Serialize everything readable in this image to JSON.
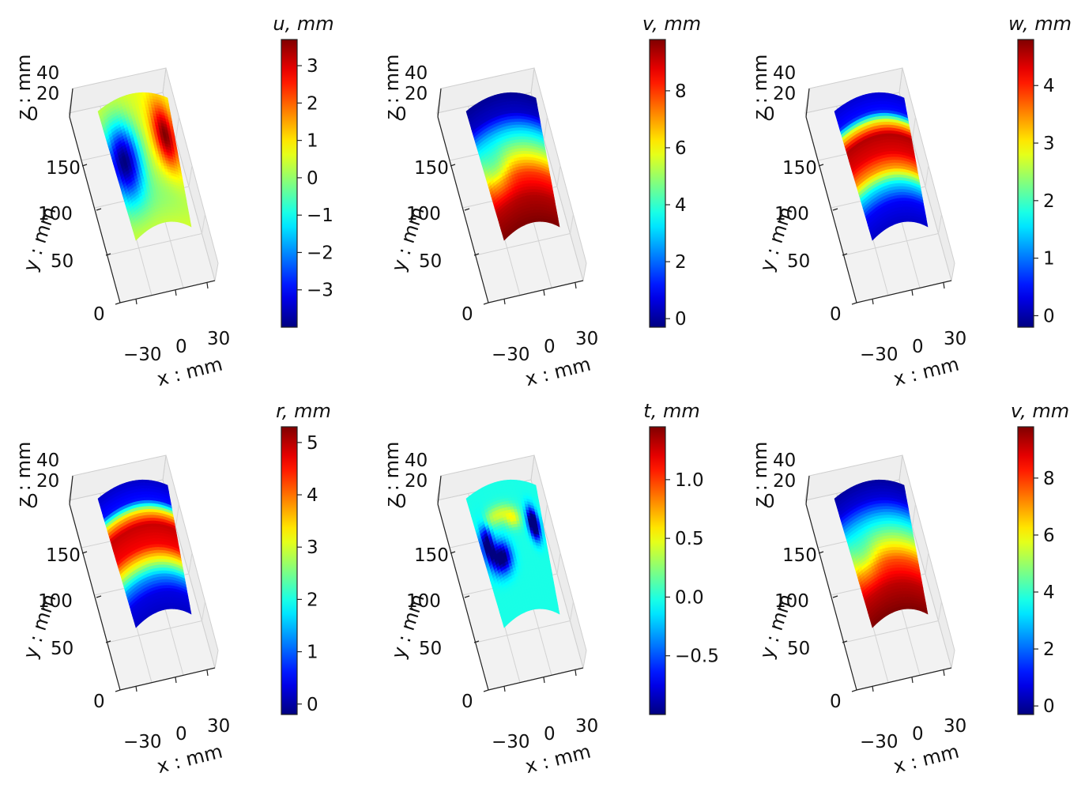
{
  "chart_data": [
    {
      "type": "heatmap",
      "title": "u, mm",
      "colormap": "jet",
      "colorbar": {
        "ticks": [
          "3",
          "2",
          "1",
          "0",
          "−1",
          "−2",
          "−3"
        ],
        "tick_values": [
          3,
          2,
          1,
          0,
          -1,
          -2,
          -3
        ],
        "min": -4.0,
        "max": 3.7
      },
      "axes": {
        "xlabel": "x : mm",
        "ylabel": "y : mm",
        "zlabel": "z : mm",
        "xticks": [
          "−30",
          "0",
          "30"
        ],
        "yticks": [
          "150",
          "100",
          "50",
          "0"
        ],
        "zticks": [
          "40",
          "20",
          "0"
        ]
      },
      "field": {
        "base": 0.6,
        "blobs": [
          {
            "cx": 0.15,
            "cy": 0.45,
            "sx": 0.18,
            "sy": 0.2,
            "v": 0.0
          },
          {
            "cx": 0.85,
            "cy": 0.32,
            "sx": 0.13,
            "sy": 0.17,
            "v": 1.0
          },
          {
            "cx": 0.5,
            "cy": 0.8,
            "sx": 0.5,
            "sy": 0.15,
            "v": 0.52
          }
        ]
      }
    },
    {
      "type": "heatmap",
      "title": "v, mm",
      "colormap": "jet",
      "colorbar": {
        "ticks": [
          "8",
          "6",
          "4",
          "2",
          "0"
        ],
        "tick_values": [
          8,
          6,
          4,
          2,
          0
        ],
        "min": -0.3,
        "max": 9.8
      },
      "axes": {
        "xlabel": "x : mm",
        "ylabel": "y : mm",
        "zlabel": "z : mm",
        "xticks": [
          "−30",
          "0",
          "30"
        ],
        "yticks": [
          "150",
          "100",
          "50",
          "0"
        ],
        "zticks": [
          "40",
          "20",
          "0"
        ]
      },
      "field": {
        "grad": [
          [
            0.0,
            0.02
          ],
          [
            0.15,
            0.07
          ],
          [
            0.28,
            0.32
          ],
          [
            0.45,
            0.56
          ],
          [
            0.62,
            0.82
          ],
          [
            0.8,
            0.95
          ],
          [
            1.0,
            1.0
          ]
        ],
        "blobs": [
          {
            "cx": 0.15,
            "cy": 0.55,
            "sx": 0.15,
            "sy": 0.12,
            "v": -0.14
          }
        ]
      }
    },
    {
      "type": "heatmap",
      "title": "w, mm",
      "colormap": "jet",
      "colorbar": {
        "ticks": [
          "4",
          "3",
          "2",
          "1",
          "0"
        ],
        "tick_values": [
          4,
          3,
          2,
          1,
          0
        ],
        "min": -0.2,
        "max": 4.8
      },
      "axes": {
        "xlabel": "x : mm",
        "ylabel": "y : mm",
        "zlabel": "z : mm",
        "xticks": [
          "−30",
          "0",
          "30"
        ],
        "yticks": [
          "150",
          "100",
          "50",
          "0"
        ],
        "zticks": [
          "40",
          "20",
          "0"
        ]
      },
      "field": {
        "grad": [
          [
            0.0,
            0.08
          ],
          [
            0.14,
            0.14
          ],
          [
            0.22,
            0.62
          ],
          [
            0.32,
            0.95
          ],
          [
            0.46,
            0.9
          ],
          [
            0.58,
            0.72
          ],
          [
            0.7,
            0.36
          ],
          [
            0.84,
            0.12
          ],
          [
            1.0,
            0.07
          ]
        ]
      }
    },
    {
      "type": "heatmap",
      "title": "r, mm",
      "colormap": "jet",
      "colorbar": {
        "ticks": [
          "5",
          "4",
          "3",
          "2",
          "1",
          "0"
        ],
        "tick_values": [
          5,
          4,
          3,
          2,
          1,
          0
        ],
        "min": -0.2,
        "max": 5.3
      },
      "axes": {
        "xlabel": "x : mm",
        "ylabel": "y : mm",
        "zlabel": "z : mm",
        "xticks": [
          "−30",
          "0",
          "30"
        ],
        "yticks": [
          "150",
          "100",
          "50",
          "0"
        ],
        "zticks": [
          "40",
          "20",
          "0"
        ]
      },
      "field": {
        "grad": [
          [
            0.0,
            0.07
          ],
          [
            0.15,
            0.14
          ],
          [
            0.24,
            0.65
          ],
          [
            0.34,
            0.93
          ],
          [
            0.5,
            0.88
          ],
          [
            0.62,
            0.6
          ],
          [
            0.74,
            0.28
          ],
          [
            0.86,
            0.1
          ],
          [
            1.0,
            0.07
          ]
        ]
      }
    },
    {
      "type": "heatmap",
      "title": "t, mm",
      "colormap": "jet",
      "colorbar": {
        "ticks": [
          "1.0",
          "0.5",
          "0.0",
          "−0.5"
        ],
        "tick_values": [
          1.0,
          0.5,
          0.0,
          -0.5
        ],
        "min": -1.0,
        "max": 1.45
      },
      "axes": {
        "xlabel": "x : mm",
        "ylabel": "y : mm",
        "zlabel": "z : mm",
        "xticks": [
          "−30",
          "0",
          "30"
        ],
        "yticks": [
          "150",
          "100",
          "50",
          "0"
        ],
        "zticks": [
          "40",
          "20",
          "0"
        ]
      },
      "field": {
        "base": 0.4,
        "blobs": [
          {
            "cx": 0.35,
            "cy": 0.24,
            "sx": 0.16,
            "sy": 0.05,
            "v": 0.58
          },
          {
            "cx": 0.55,
            "cy": 0.3,
            "sx": 0.08,
            "sy": 0.05,
            "v": 0.58
          },
          {
            "cx": 0.85,
            "cy": 0.33,
            "sx": 0.06,
            "sy": 0.08,
            "v": -0.25
          },
          {
            "cx": 0.25,
            "cy": 0.55,
            "sx": 0.1,
            "sy": 0.08,
            "v": -0.06
          },
          {
            "cx": 0.1,
            "cy": 0.4,
            "sx": 0.06,
            "sy": 0.1,
            "v": -0.05
          }
        ]
      }
    },
    {
      "type": "heatmap",
      "title": "v, mm",
      "colormap": "jet",
      "colorbar": {
        "ticks": [
          "8",
          "6",
          "4",
          "2",
          "0"
        ],
        "tick_values": [
          8,
          6,
          4,
          2,
          0
        ],
        "min": -0.3,
        "max": 9.8
      },
      "axes": {
        "xlabel": "x : mm",
        "ylabel": "y : mm",
        "zlabel": "z : mm",
        "xticks": [
          "−30",
          "0",
          "30"
        ],
        "yticks": [
          "150",
          "100",
          "50",
          "0"
        ],
        "zticks": [
          "40",
          "20",
          "0"
        ]
      },
      "field": {
        "grad": [
          [
            0.0,
            0.03
          ],
          [
            0.14,
            0.09
          ],
          [
            0.28,
            0.32
          ],
          [
            0.45,
            0.55
          ],
          [
            0.62,
            0.8
          ],
          [
            0.8,
            0.94
          ],
          [
            1.0,
            1.0
          ]
        ],
        "blobs": [
          {
            "cx": 0.15,
            "cy": 0.55,
            "sx": 0.15,
            "sy": 0.12,
            "v": -0.12
          }
        ]
      }
    }
  ]
}
